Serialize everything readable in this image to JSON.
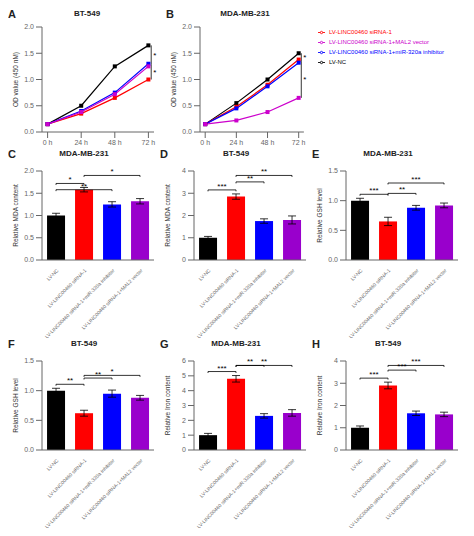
{
  "chart_data": [
    {
      "type": "line",
      "title": "BT-549",
      "ylabel": "OD value (450 nM)",
      "x": [
        0,
        24,
        48,
        72
      ],
      "xlim": [
        -4,
        76
      ],
      "xticks": [
        {
          "value": 0,
          "label": "0 h"
        },
        {
          "value": 24,
          "label": "24 h"
        },
        {
          "value": 48,
          "label": "48 h"
        },
        {
          "value": 72,
          "label": "72 h"
        }
      ],
      "ylim": [
        0,
        2.0
      ],
      "yticks": [
        {
          "value": 0,
          "label": "0.0"
        },
        0.5,
        {
          "value": 1,
          "label": "1.0"
        },
        1.5,
        {
          "value": 2,
          "label": "2.0"
        }
      ],
      "grid": false,
      "marker": "square",
      "series": [
        {
          "name": "LV-NC",
          "color": "#000000",
          "values": [
            0.15,
            0.5,
            1.25,
            1.65
          ]
        },
        {
          "name": "LV-LINC00460 siRNA-1",
          "color": "#ff0000",
          "values": [
            0.15,
            0.35,
            0.65,
            1.0
          ]
        },
        {
          "name": "LV-LINC00460 siRNA-1+miR-320a inhibitor",
          "color": "#0000ff",
          "values": [
            0.15,
            0.4,
            0.75,
            1.3
          ]
        },
        {
          "name": "LV-LINC00460 siRNA-1+MAL2 vector",
          "color": "#cc00cc",
          "values": [
            0.15,
            0.38,
            0.72,
            1.25
          ]
        }
      ],
      "annotations": [
        {
          "text": "A"
        },
        {
          "text": "*",
          "x": 74,
          "y": [
            1.65,
            1.28
          ]
        },
        {
          "text": "*",
          "x": 74,
          "y": [
            1.28,
            1.0
          ]
        }
      ]
    },
    {
      "type": "line",
      "title": "MDA-MB-231",
      "ylabel": "OD value (450 nM)",
      "x": [
        0,
        24,
        48,
        72
      ],
      "xlim": [
        -4,
        76
      ],
      "xticks": [
        {
          "value": 0,
          "label": "0 h"
        },
        {
          "value": 24,
          "label": "24 h"
        },
        {
          "value": 48,
          "label": "48 h"
        },
        {
          "value": 72,
          "label": "72 h"
        }
      ],
      "ylim": [
        0,
        2.0
      ],
      "yticks": [
        {
          "value": 0,
          "label": "0.0"
        },
        0.5,
        {
          "value": 1,
          "label": "1.0"
        },
        1.5,
        {
          "value": 2,
          "label": "2.0"
        }
      ],
      "grid": false,
      "marker": "square",
      "legend": "right",
      "series": [
        {
          "name": "LV-NC",
          "color": "#000000",
          "values": [
            0.15,
            0.55,
            1.0,
            1.5
          ]
        },
        {
          "name": "LV-LINC00460 siRNA-1",
          "color": "#ff0000",
          "values": [
            0.15,
            0.48,
            0.9,
            1.38
          ]
        },
        {
          "name": "LV-LINC00460 siRNA-1+miR-320a inhibitor",
          "color": "#0000ff",
          "values": [
            0.15,
            0.45,
            0.87,
            1.32
          ]
        },
        {
          "name": "LV-LINC00460 siRNA-1+MAL2 vector",
          "color": "#cc00cc",
          "values": [
            0.15,
            0.22,
            0.38,
            0.65
          ]
        }
      ],
      "annotations": [
        {
          "text": "B"
        },
        {
          "text": "*",
          "x": 74,
          "y": [
            1.5,
            1.35
          ]
        },
        {
          "text": "*",
          "x": 74,
          "y": [
            1.35,
            0.65
          ]
        }
      ]
    },
    {
      "type": "bar",
      "title": "MDA-MB-231",
      "ylabel": "Relative MDA content",
      "categories": [
        "LV-NC",
        "LV-LINC00460 siRNA-1",
        "LV-LINC00460 siRNA-1+miR-320a inhibitor",
        "LV-LINC00460 siRNA-1+MAL2 vector"
      ],
      "values": [
        1.0,
        1.58,
        1.25,
        1.32
      ],
      "errors": [
        0.05,
        0.05,
        0.06,
        0.06
      ],
      "colors": [
        "#000000",
        "#ff0000",
        "#0000ff",
        "#9900cc"
      ],
      "ylim": [
        0,
        2.0
      ],
      "yticks": [
        {
          "value": 0,
          "label": "0.0"
        },
        0.5,
        {
          "value": 1,
          "label": "1.0"
        },
        1.5,
        {
          "value": 2,
          "label": "2.0"
        }
      ],
      "grid": false,
      "annotations": [
        {
          "text": "C"
        },
        {
          "text": "*",
          "between": [
            "LV-NC",
            "LV-LINC00460 siRNA-1"
          ]
        },
        {
          "text": "**",
          "between": [
            "LV-NC",
            "LV-LINC00460 siRNA-1+miR-320a inhibitor"
          ]
        },
        {
          "text": "*",
          "between": [
            "LV-LINC00460 siRNA-1",
            "LV-LINC00460 siRNA-1+MAL2 vector"
          ]
        }
      ]
    },
    {
      "type": "bar",
      "title": "BT-549",
      "ylabel": "Relative MDA content",
      "categories": [
        "LV-NC",
        "LV-LINC00460 siRNA-1",
        "LV-LINC00460 siRNA-1+miR-320a inhibitor",
        "LV-LINC00460 siRNA-1+MAL2 vector"
      ],
      "values": [
        1.0,
        2.85,
        1.75,
        1.8
      ],
      "errors": [
        0.06,
        0.12,
        0.1,
        0.18
      ],
      "colors": [
        "#000000",
        "#ff0000",
        "#0000ff",
        "#9900cc"
      ],
      "ylim": [
        0,
        4.0
      ],
      "yticks": [
        0,
        1,
        2,
        3,
        4
      ],
      "grid": false,
      "annotations": [
        {
          "text": "D"
        },
        {
          "text": "***",
          "between": [
            "LV-NC",
            "LV-LINC00460 siRNA-1"
          ]
        },
        {
          "text": "**",
          "between": [
            "LV-LINC00460 siRNA-1",
            "LV-LINC00460 siRNA-1+miR-320a inhibitor"
          ]
        },
        {
          "text": "**",
          "between": [
            "LV-LINC00460 siRNA-1",
            "LV-LINC00460 siRNA-1+MAL2 vector"
          ]
        }
      ]
    },
    {
      "type": "bar",
      "title": "MDA-MB-231",
      "ylabel": "Relative GSH level",
      "categories": [
        "LV-NC",
        "LV-LINC00460 siRNA-1",
        "LV-LINC00460 siRNA-1+miR-320a inhibitor",
        "LV-LINC00460 siRNA-1+MAL2 vector"
      ],
      "values": [
        1.0,
        0.65,
        0.88,
        0.92
      ],
      "errors": [
        0.04,
        0.07,
        0.04,
        0.04
      ],
      "colors": [
        "#000000",
        "#ff0000",
        "#0000ff",
        "#9900cc"
      ],
      "ylim": [
        0,
        1.5
      ],
      "yticks": [
        {
          "value": 0,
          "label": "0.0"
        },
        0.5,
        {
          "value": 1,
          "label": "1.0"
        },
        1.5
      ],
      "grid": false,
      "annotations": [
        {
          "text": "E"
        },
        {
          "text": "***",
          "between": [
            "LV-NC",
            "LV-LINC00460 siRNA-1"
          ]
        },
        {
          "text": "**",
          "between": [
            "LV-LINC00460 siRNA-1",
            "LV-LINC00460 siRNA-1+miR-320a inhibitor"
          ]
        },
        {
          "text": "***",
          "between": [
            "LV-LINC00460 siRNA-1",
            "LV-LINC00460 siRNA-1+MAL2 vector"
          ]
        }
      ]
    },
    {
      "type": "bar",
      "title": "BT-549",
      "ylabel": "Relative GSH level",
      "categories": [
        "LV-NC",
        "LV-LINC00460 siRNA-1",
        "LV-LINC00460 siRNA-1+miR-320a inhibitor",
        "LV-LINC00460 siRNA-1+MAL2 vector"
      ],
      "values": [
        1.0,
        0.62,
        0.95,
        0.88
      ],
      "errors": [
        0.04,
        0.05,
        0.06,
        0.04
      ],
      "colors": [
        "#000000",
        "#ff0000",
        "#0000ff",
        "#9900cc"
      ],
      "ylim": [
        0,
        1.5
      ],
      "yticks": [
        {
          "value": 0,
          "label": "0.0"
        },
        0.5,
        {
          "value": 1,
          "label": "1.0"
        },
        1.5
      ],
      "grid": false,
      "annotations": [
        {
          "text": "F"
        },
        {
          "text": "**",
          "between": [
            "LV-NC",
            "LV-LINC00460 siRNA-1"
          ]
        },
        {
          "text": "**",
          "between": [
            "LV-LINC00460 siRNA-1",
            "LV-LINC00460 siRNA-1+miR-320a inhibitor"
          ]
        },
        {
          "text": "*",
          "between": [
            "LV-LINC00460 siRNA-1",
            "LV-LINC00460 siRNA-1+MAL2 vector"
          ]
        }
      ]
    },
    {
      "type": "bar",
      "title": "MDA-MB-231",
      "ylabel": "Relative Iron content",
      "categories": [
        "LV-NC",
        "LV-LINC00460 siRNA-1",
        "LV-LINC00460 siRNA-1+miR-320a inhibitor",
        "LV-LINC00460 siRNA-1+MAL2 vector"
      ],
      "values": [
        1.0,
        4.8,
        2.3,
        2.5
      ],
      "errors": [
        0.12,
        0.22,
        0.15,
        0.22
      ],
      "colors": [
        "#000000",
        "#ff0000",
        "#0000ff",
        "#9900cc"
      ],
      "ylim": [
        0,
        6.0
      ],
      "yticks": [
        0,
        1,
        2,
        3,
        4,
        5,
        6
      ],
      "grid": false,
      "annotations": [
        {
          "text": "G"
        },
        {
          "text": "***",
          "between": [
            "LV-NC",
            "LV-LINC00460 siRNA-1"
          ]
        },
        {
          "text": "**",
          "between": [
            "LV-LINC00460 siRNA-1",
            "LV-LINC00460 siRNA-1+miR-320a inhibitor"
          ]
        },
        {
          "text": "**",
          "between": [
            "LV-LINC00460 siRNA-1",
            "LV-LINC00460 siRNA-1+MAL2 vector"
          ]
        }
      ]
    },
    {
      "type": "bar",
      "title": "BT-549",
      "ylabel": "Relative Iron content",
      "categories": [
        "LV-NC",
        "LV-LINC00460 siRNA-1",
        "LV-LINC00460 siRNA-1+miR-320a inhibitor",
        "LV-LINC00460 siRNA-1+MAL2 vector"
      ],
      "values": [
        1.0,
        2.9,
        1.65,
        1.6
      ],
      "errors": [
        0.08,
        0.15,
        0.1,
        0.1
      ],
      "colors": [
        "#000000",
        "#ff0000",
        "#0000ff",
        "#9900cc"
      ],
      "ylim": [
        0,
        4.0
      ],
      "yticks": [
        0,
        1,
        2,
        3,
        4
      ],
      "grid": false,
      "annotations": [
        {
          "text": "H"
        },
        {
          "text": "***",
          "between": [
            "LV-NC",
            "LV-LINC00460 siRNA-1"
          ]
        },
        {
          "text": "***",
          "between": [
            "LV-LINC00460 siRNA-1",
            "LV-LINC00460 siRNA-1+miR-320a inhibitor"
          ]
        },
        {
          "text": "***",
          "between": [
            "LV-LINC00460 siRNA-1",
            "LV-LINC00460 siRNA-1+MAL2 vector"
          ]
        }
      ]
    }
  ]
}
